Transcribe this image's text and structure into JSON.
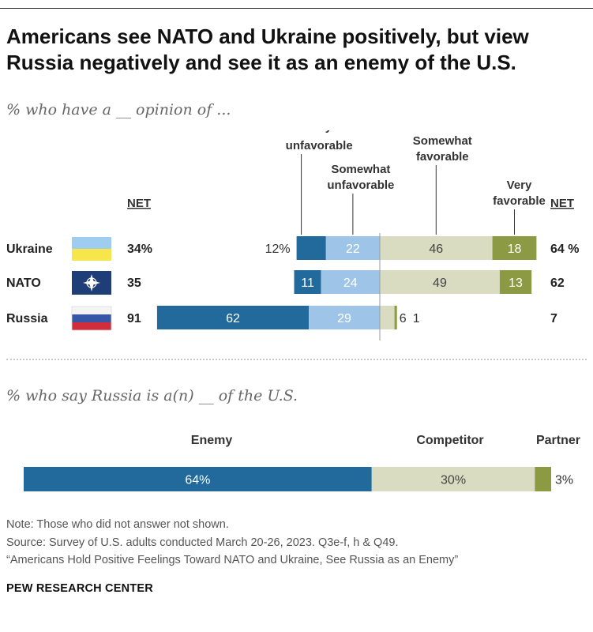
{
  "title": "Americans see NATO and Ukraine positively, but view Russia negatively and see it as an enemy of the U.S.",
  "brand": "PEW RESEARCH CENTER",
  "notes": {
    "note": "Note: Those who did not answer not shown.",
    "source": "Source: Survey of U.S. adults conducted March 20-26, 2023. Q3e-f, h & Q49.",
    "report": "“Americans Hold Positive Feelings Toward NATO and Ukraine, See Russia as an Enemy”"
  },
  "colors": {
    "very_unfavorable": "#226a9c",
    "somewhat_unfavorable": "#9ec5e8",
    "somewhat_favorable": "#d9dcc0",
    "very_favorable": "#8c9a43",
    "enemy": "#226a9c",
    "competitor": "#d9dcc0",
    "partner": "#8c9a43"
  },
  "chart_data": [
    {
      "type": "bar",
      "orientation": "horizontal",
      "stacked": "diverging",
      "subtitle": "% who have a __ opinion of ...",
      "net_label": "NET",
      "categories": [
        "Ukraine",
        "NATO",
        "Russia"
      ],
      "flags": [
        "ukraine-flag",
        "nato-flag",
        "russia-flag"
      ],
      "series": [
        {
          "name": "Very unfavorable",
          "label_lines": [
            "Very",
            "unfavorable"
          ],
          "side": "negative",
          "values": [
            12,
            11,
            62
          ],
          "labels": [
            "12%",
            "11",
            "62"
          ]
        },
        {
          "name": "Somewhat unfavorable",
          "label_lines": [
            "Somewhat",
            "unfavorable"
          ],
          "side": "negative",
          "values": [
            22,
            24,
            29
          ],
          "labels": [
            "22",
            "24",
            "29"
          ]
        },
        {
          "name": "Somewhat favorable",
          "label_lines": [
            "Somewhat",
            "favorable"
          ],
          "side": "positive",
          "values": [
            46,
            49,
            6
          ],
          "labels": [
            "46",
            "49",
            "6"
          ]
        },
        {
          "name": "Very favorable",
          "label_lines": [
            "Very",
            "favorable"
          ],
          "side": "positive",
          "values": [
            18,
            13,
            1
          ],
          "labels": [
            "18",
            "13",
            "1"
          ]
        }
      ],
      "net_unfavorable": [
        "34%",
        "35",
        "91"
      ],
      "net_favorable": [
        "64 %",
        "62",
        "7"
      ]
    },
    {
      "type": "bar",
      "orientation": "horizontal",
      "stacked": "full",
      "subtitle": "% who say Russia is a(n) __ of the U.S.",
      "segments": [
        {
          "name": "Enemy",
          "value": 64,
          "label": "64%"
        },
        {
          "name": "Competitor",
          "value": 30,
          "label": "30%"
        },
        {
          "name": "Partner",
          "value": 3,
          "label": "3%"
        }
      ]
    }
  ]
}
